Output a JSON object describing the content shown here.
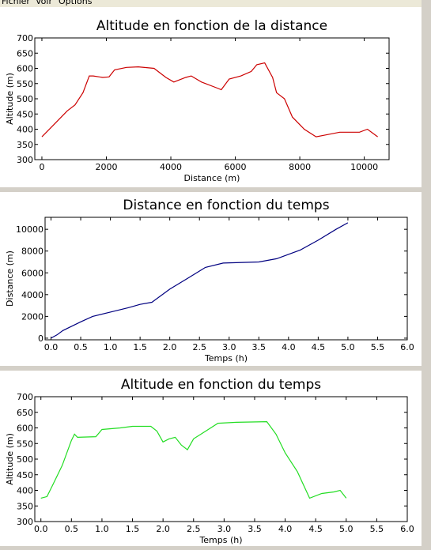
{
  "menu": [
    "Fichier",
    "Voir",
    "Options"
  ],
  "chart_data": [
    {
      "type": "line",
      "title": "Altitude en fonction de la distance",
      "xlabel": "Distance (m)",
      "ylabel": "Altitude (m)",
      "color": "#cc0000",
      "x": [
        0,
        417,
        784,
        1029,
        1275,
        1470,
        1593,
        1887,
        2083,
        2255,
        2622,
        2990,
        3480,
        3848,
        4093,
        4461,
        4632,
        4950,
        5441,
        5564,
        5809,
        6176,
        6495,
        6667,
        6912,
        7157,
        7279,
        7524,
        7770,
        8137,
        8505,
        8750,
        9240,
        9853,
        10098,
        10417
      ],
      "values": [
        375,
        420,
        460,
        480,
        520,
        575,
        575,
        570,
        572,
        595,
        603,
        605,
        600,
        570,
        555,
        570,
        575,
        555,
        535,
        530,
        565,
        575,
        590,
        612,
        618,
        570,
        520,
        500,
        440,
        400,
        375,
        380,
        390,
        390,
        400,
        375
      ],
      "xlim": [
        -220,
        10770
      ],
      "xticks": [
        0,
        2000,
        4000,
        6000,
        8000,
        10000
      ],
      "ylim": [
        300,
        700
      ],
      "yticks": [
        300,
        350,
        400,
        450,
        500,
        550,
        600,
        650,
        700
      ]
    },
    {
      "type": "line",
      "title": "Distance en fonction du temps",
      "xlabel": "Temps (h)",
      "ylabel": "Distance (m)",
      "color": "#000080",
      "x": [
        0,
        0.1,
        0.2,
        0.5,
        0.7,
        1.0,
        1.3,
        1.5,
        1.7,
        2.0,
        2.3,
        2.6,
        2.9,
        3.5,
        3.8,
        4.2,
        4.5,
        4.8,
        5.0
      ],
      "values": [
        0,
        300,
        700,
        1500,
        2000,
        2400,
        2800,
        3100,
        3300,
        4500,
        5500,
        6500,
        6900,
        7000,
        7300,
        8100,
        9000,
        10000,
        10600
      ],
      "xlim": [
        -0.1,
        6.0
      ],
      "xticks": [
        {
          "value": 0,
          "label": "0.0"
        },
        0.5,
        {
          "value": 1,
          "label": "1.0"
        },
        1.5,
        {
          "value": 2,
          "label": "2.0"
        },
        2.5,
        {
          "value": 3,
          "label": "3.0"
        },
        3.5,
        {
          "value": 4,
          "label": "4.0"
        },
        4.5,
        {
          "value": 5,
          "label": "5.0"
        },
        5.5,
        {
          "value": 6,
          "label": "6.0"
        }
      ],
      "ylim": [
        -150,
        11100
      ],
      "yticks": [
        0,
        2000,
        4000,
        6000,
        8000,
        10000
      ]
    },
    {
      "type": "line",
      "title": "Altitude en fonction du temps",
      "xlabel": "Temps (h)",
      "ylabel": "Altitude (m)",
      "color": "#22dd22",
      "x": [
        0,
        0.1,
        0.2,
        0.35,
        0.5,
        0.55,
        0.6,
        0.9,
        1.0,
        1.3,
        1.5,
        1.8,
        1.9,
        2.0,
        2.1,
        2.2,
        2.3,
        2.4,
        2.5,
        2.7,
        2.9,
        3.2,
        3.7,
        3.85,
        4.0,
        4.2,
        4.4,
        4.6,
        4.8,
        4.9,
        5.0
      ],
      "values": [
        375,
        380,
        420,
        480,
        560,
        580,
        570,
        572,
        595,
        600,
        605,
        605,
        590,
        555,
        565,
        570,
        545,
        530,
        565,
        590,
        615,
        618,
        620,
        580,
        520,
        460,
        375,
        390,
        395,
        400,
        375
      ],
      "xlim": [
        -0.1,
        6.0
      ],
      "xticks": [
        {
          "value": 0,
          "label": "0.0"
        },
        0.5,
        {
          "value": 1,
          "label": "1.0"
        },
        1.5,
        {
          "value": 2,
          "label": "2.0"
        },
        2.5,
        {
          "value": 3,
          "label": "3.0"
        },
        3.5,
        {
          "value": 4,
          "label": "4.0"
        },
        4.5,
        {
          "value": 5,
          "label": "5.0"
        },
        5.5,
        {
          "value": 6,
          "label": "6.0"
        }
      ],
      "ylim": [
        300,
        700
      ],
      "yticks": [
        300,
        350,
        400,
        450,
        500,
        550,
        600,
        650,
        700
      ]
    }
  ]
}
